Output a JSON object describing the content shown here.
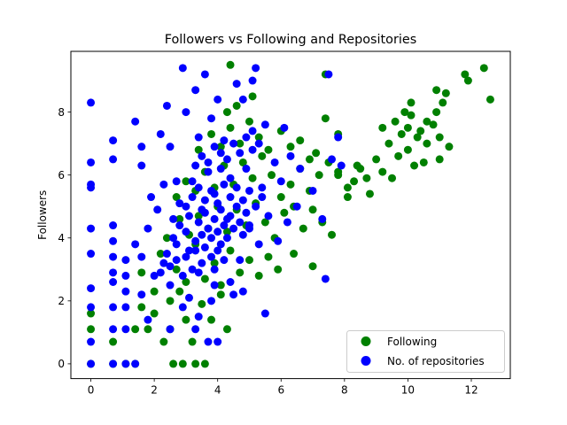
{
  "chart_data": {
    "type": "scatter",
    "title": "Followers vs Following and Repositories",
    "xlabel": "",
    "ylabel": "Followers",
    "xlim": [
      -0.63,
      13.23
    ],
    "ylim": [
      -0.47,
      9.93
    ],
    "xticks": [
      0,
      2,
      4,
      6,
      8,
      10,
      12
    ],
    "yticks": [
      0,
      2,
      4,
      6,
      8
    ],
    "grid": false,
    "legend_position": "lower-right",
    "series": [
      {
        "name": "Following",
        "color": "#008000",
        "points": [
          [
            0.0,
            0.0
          ],
          [
            0.0,
            1.1
          ],
          [
            0.0,
            1.6
          ],
          [
            0.7,
            0.0
          ],
          [
            0.7,
            0.7
          ],
          [
            1.1,
            0.0
          ],
          [
            1.4,
            0.0
          ],
          [
            2.6,
            0.0
          ],
          [
            2.9,
            0.0
          ],
          [
            3.3,
            0.0
          ],
          [
            3.6,
            0.0
          ],
          [
            1.4,
            1.1
          ],
          [
            1.6,
            1.8
          ],
          [
            1.8,
            1.1
          ],
          [
            2.0,
            1.6
          ],
          [
            2.3,
            0.7
          ],
          [
            2.5,
            1.1
          ],
          [
            2.8,
            2.3
          ],
          [
            3.0,
            1.4
          ],
          [
            3.2,
            0.7
          ],
          [
            3.5,
            1.9
          ],
          [
            3.8,
            1.4
          ],
          [
            4.1,
            2.2
          ],
          [
            4.3,
            1.1
          ],
          [
            1.6,
            2.9
          ],
          [
            2.0,
            2.3
          ],
          [
            2.2,
            3.5
          ],
          [
            2.5,
            2.0
          ],
          [
            2.7,
            3.0
          ],
          [
            3.0,
            2.6
          ],
          [
            3.3,
            3.8
          ],
          [
            3.6,
            2.7
          ],
          [
            3.9,
            3.2
          ],
          [
            4.1,
            2.5
          ],
          [
            4.4,
            3.6
          ],
          [
            4.7,
            2.9
          ],
          [
            5.0,
            3.3
          ],
          [
            5.3,
            2.8
          ],
          [
            5.6,
            3.4
          ],
          [
            5.9,
            3.0
          ],
          [
            6.4,
            3.5
          ],
          [
            7.0,
            3.1
          ],
          [
            2.4,
            4.0
          ],
          [
            2.8,
            4.6
          ],
          [
            3.1,
            4.1
          ],
          [
            3.4,
            4.7
          ],
          [
            3.7,
            4.3
          ],
          [
            4.0,
            5.0
          ],
          [
            4.3,
            4.2
          ],
          [
            4.6,
            4.9
          ],
          [
            4.9,
            4.4
          ],
          [
            5.2,
            5.1
          ],
          [
            5.5,
            4.5
          ],
          [
            5.8,
            4.0
          ],
          [
            6.1,
            4.8
          ],
          [
            6.4,
            5.0
          ],
          [
            6.7,
            4.3
          ],
          [
            7.0,
            4.9
          ],
          [
            7.3,
            4.5
          ],
          [
            7.6,
            4.1
          ],
          [
            2.7,
            5.3
          ],
          [
            3.0,
            5.8
          ],
          [
            3.3,
            5.5
          ],
          [
            3.6,
            6.1
          ],
          [
            3.9,
            5.6
          ],
          [
            4.2,
            6.3
          ],
          [
            4.5,
            5.7
          ],
          [
            4.8,
            6.4
          ],
          [
            5.1,
            5.9
          ],
          [
            5.4,
            6.6
          ],
          [
            5.7,
            6.0
          ],
          [
            6.0,
            5.3
          ],
          [
            6.3,
            5.7
          ],
          [
            6.6,
            6.2
          ],
          [
            6.9,
            5.5
          ],
          [
            7.2,
            6.0
          ],
          [
            7.5,
            6.4
          ],
          [
            7.8,
            6.1
          ],
          [
            8.1,
            5.6
          ],
          [
            8.4,
            6.3
          ],
          [
            8.7,
            5.9
          ],
          [
            3.4,
            6.8
          ],
          [
            3.8,
            7.3
          ],
          [
            4.1,
            6.9
          ],
          [
            4.4,
            7.5
          ],
          [
            4.7,
            7.0
          ],
          [
            5.0,
            7.7
          ],
          [
            5.3,
            7.2
          ],
          [
            5.6,
            6.8
          ],
          [
            6.0,
            7.4
          ],
          [
            6.3,
            6.9
          ],
          [
            6.6,
            7.1
          ],
          [
            6.9,
            6.5
          ],
          [
            7.1,
            6.7
          ],
          [
            7.4,
            7.8
          ],
          [
            7.8,
            7.3
          ],
          [
            4.3,
            8.0
          ],
          [
            4.6,
            8.2
          ],
          [
            5.1,
            8.5
          ],
          [
            4.4,
            9.5
          ],
          [
            7.4,
            9.2
          ],
          [
            7.8,
            6.0
          ],
          [
            8.1,
            5.3
          ],
          [
            8.3,
            5.8
          ],
          [
            8.5,
            6.2
          ],
          [
            8.8,
            5.4
          ],
          [
            9.0,
            6.5
          ],
          [
            9.2,
            6.1
          ],
          [
            9.4,
            7.0
          ],
          [
            9.5,
            5.9
          ],
          [
            9.7,
            6.6
          ],
          [
            9.8,
            7.3
          ],
          [
            10.0,
            6.8
          ],
          [
            10.1,
            7.9
          ],
          [
            10.2,
            6.3
          ],
          [
            10.4,
            7.4
          ],
          [
            10.6,
            7.0
          ],
          [
            10.8,
            7.6
          ],
          [
            11.0,
            7.2
          ],
          [
            11.1,
            8.3
          ],
          [
            11.3,
            6.9
          ],
          [
            11.0,
            6.5
          ],
          [
            9.2,
            7.5
          ],
          [
            9.6,
            7.7
          ],
          [
            9.9,
            8.0
          ],
          [
            10.0,
            7.5
          ],
          [
            10.1,
            8.3
          ],
          [
            10.3,
            7.2
          ],
          [
            10.5,
            6.4
          ],
          [
            10.9,
            8.0
          ],
          [
            11.2,
            8.6
          ],
          [
            11.8,
            9.2
          ],
          [
            11.9,
            9.0
          ],
          [
            12.4,
            9.4
          ],
          [
            12.6,
            8.4
          ],
          [
            10.9,
            8.7
          ],
          [
            10.6,
            7.7
          ]
        ]
      },
      {
        "name": "No. of repositories",
        "color": "#0000ff",
        "points": [
          [
            0.0,
            0.0
          ],
          [
            0.0,
            0.7
          ],
          [
            0.0,
            1.8
          ],
          [
            0.0,
            2.4
          ],
          [
            0.0,
            3.5
          ],
          [
            0.0,
            4.3
          ],
          [
            0.0,
            5.6
          ],
          [
            0.0,
            5.7
          ],
          [
            0.0,
            6.4
          ],
          [
            0.0,
            8.3
          ],
          [
            0.7,
            0.0
          ],
          [
            0.7,
            1.1
          ],
          [
            0.7,
            1.8
          ],
          [
            0.7,
            2.6
          ],
          [
            0.7,
            2.9
          ],
          [
            0.7,
            3.4
          ],
          [
            0.7,
            3.9
          ],
          [
            0.7,
            4.4
          ],
          [
            0.7,
            6.5
          ],
          [
            0.7,
            7.1
          ],
          [
            1.1,
            0.0
          ],
          [
            1.1,
            1.1
          ],
          [
            1.1,
            1.8
          ],
          [
            1.1,
            2.3
          ],
          [
            1.1,
            2.8
          ],
          [
            1.1,
            3.3
          ],
          [
            1.4,
            0.0
          ],
          [
            1.4,
            3.8
          ],
          [
            1.4,
            7.7
          ],
          [
            1.6,
            2.2
          ],
          [
            1.6,
            3.4
          ],
          [
            1.6,
            6.3
          ],
          [
            1.6,
            6.9
          ],
          [
            1.8,
            1.4
          ],
          [
            1.8,
            4.3
          ],
          [
            1.9,
            5.3
          ],
          [
            2.0,
            2.8
          ],
          [
            2.1,
            4.9
          ],
          [
            2.2,
            7.3
          ],
          [
            2.3,
            3.2
          ],
          [
            2.3,
            5.7
          ],
          [
            2.4,
            8.2
          ],
          [
            2.5,
            2.5
          ],
          [
            2.5,
            6.9
          ],
          [
            2.6,
            4.6
          ],
          [
            2.7,
            3.8
          ],
          [
            2.8,
            5.1
          ],
          [
            2.9,
            9.4
          ],
          [
            3.0,
            8.0
          ],
          [
            3.1,
            3.6
          ],
          [
            3.2,
            5.8
          ],
          [
            3.3,
            8.7
          ],
          [
            3.4,
            2.9
          ],
          [
            3.4,
            7.2
          ],
          [
            3.5,
            4.9
          ],
          [
            3.6,
            9.2
          ],
          [
            3.7,
            0.7
          ],
          [
            3.7,
            6.1
          ],
          [
            3.8,
            7.8
          ],
          [
            3.9,
            2.5
          ],
          [
            3.9,
            5.4
          ],
          [
            4.0,
            8.4
          ],
          [
            4.0,
            0.7
          ],
          [
            4.1,
            6.7
          ],
          [
            4.1,
            3.8
          ],
          [
            4.2,
            7.1
          ],
          [
            4.3,
            4.6
          ],
          [
            4.4,
            5.9
          ],
          [
            4.5,
            2.2
          ],
          [
            4.6,
            8.9
          ],
          [
            4.7,
            3.3
          ],
          [
            4.8,
            8.4
          ],
          [
            4.9,
            6.2
          ],
          [
            5.0,
            4.3
          ],
          [
            5.1,
            7.4
          ],
          [
            5.1,
            9.0
          ],
          [
            5.2,
            9.4
          ],
          [
            5.3,
            3.8
          ],
          [
            5.4,
            5.6
          ],
          [
            5.5,
            1.6
          ],
          [
            5.5,
            7.6
          ],
          [
            5.6,
            4.7
          ],
          [
            5.8,
            6.4
          ],
          [
            5.9,
            3.9
          ],
          [
            6.0,
            5.8
          ],
          [
            6.1,
            7.5
          ],
          [
            6.2,
            4.5
          ],
          [
            6.3,
            6.6
          ],
          [
            6.5,
            5.0
          ],
          [
            6.6,
            6.2
          ],
          [
            7.0,
            5.5
          ],
          [
            7.3,
            4.6
          ],
          [
            7.4,
            2.7
          ],
          [
            7.5,
            9.2
          ],
          [
            7.6,
            6.5
          ],
          [
            7.8,
            7.2
          ],
          [
            7.9,
            6.3
          ],
          [
            2.6,
            4.0
          ],
          [
            2.8,
            4.4
          ],
          [
            3.0,
            4.2
          ],
          [
            3.1,
            4.7
          ],
          [
            3.3,
            3.9
          ],
          [
            3.4,
            4.5
          ],
          [
            3.5,
            4.1
          ],
          [
            3.6,
            4.8
          ],
          [
            3.7,
            4.3
          ],
          [
            3.8,
            4.0
          ],
          [
            3.9,
            4.6
          ],
          [
            4.0,
            4.2
          ],
          [
            4.1,
            4.9
          ],
          [
            4.2,
            4.4
          ],
          [
            4.3,
            4.0
          ],
          [
            4.4,
            4.7
          ],
          [
            4.5,
            4.3
          ],
          [
            4.6,
            5.0
          ],
          [
            4.7,
            4.5
          ],
          [
            4.8,
            4.1
          ],
          [
            4.9,
            4.8
          ],
          [
            5.0,
            4.4
          ],
          [
            2.2,
            2.9
          ],
          [
            2.4,
            3.5
          ],
          [
            2.5,
            3.1
          ],
          [
            2.7,
            3.3
          ],
          [
            2.9,
            2.8
          ],
          [
            3.0,
            3.4
          ],
          [
            3.2,
            3.0
          ],
          [
            3.3,
            3.6
          ],
          [
            3.5,
            3.2
          ],
          [
            3.6,
            3.7
          ],
          [
            3.8,
            3.4
          ],
          [
            3.9,
            3.0
          ],
          [
            4.0,
            3.6
          ],
          [
            4.2,
            3.3
          ],
          [
            3.0,
            5.0
          ],
          [
            3.2,
            5.3
          ],
          [
            3.4,
            5.6
          ],
          [
            3.6,
            5.2
          ],
          [
            3.8,
            5.5
          ],
          [
            4.0,
            5.1
          ],
          [
            4.2,
            5.7
          ],
          [
            4.4,
            5.3
          ],
          [
            4.6,
            5.6
          ],
          [
            4.8,
            5.2
          ],
          [
            5.0,
            5.5
          ],
          [
            5.2,
            5.0
          ],
          [
            5.4,
            5.3
          ],
          [
            3.3,
            6.3
          ],
          [
            3.5,
            6.6
          ],
          [
            3.7,
            6.4
          ],
          [
            3.9,
            6.9
          ],
          [
            4.1,
            6.2
          ],
          [
            4.3,
            6.5
          ],
          [
            4.5,
            7.0
          ],
          [
            4.7,
            6.7
          ],
          [
            4.9,
            7.2
          ],
          [
            5.1,
            6.8
          ],
          [
            5.3,
            7.0
          ],
          [
            2.9,
            1.8
          ],
          [
            3.1,
            2.1
          ],
          [
            3.4,
            1.5
          ],
          [
            3.8,
            2.0
          ],
          [
            4.4,
            2.6
          ],
          [
            4.8,
            2.3
          ],
          [
            2.5,
            1.1
          ],
          [
            3.3,
            1.1
          ],
          [
            2.7,
            5.8
          ]
        ]
      }
    ]
  }
}
